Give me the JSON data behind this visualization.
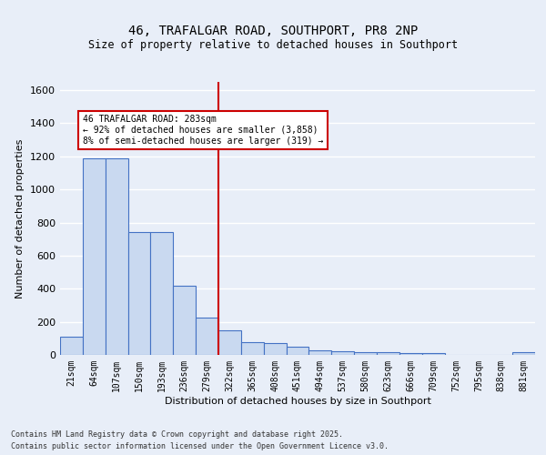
{
  "title": "46, TRAFALGAR ROAD, SOUTHPORT, PR8 2NP",
  "subtitle": "Size of property relative to detached houses in Southport",
  "xlabel": "Distribution of detached houses by size in Southport",
  "ylabel": "Number of detached properties",
  "categories": [
    "21sqm",
    "64sqm",
    "107sqm",
    "150sqm",
    "193sqm",
    "236sqm",
    "279sqm",
    "322sqm",
    "365sqm",
    "408sqm",
    "451sqm",
    "494sqm",
    "537sqm",
    "580sqm",
    "623sqm",
    "666sqm",
    "709sqm",
    "752sqm",
    "795sqm",
    "838sqm",
    "881sqm"
  ],
  "values": [
    110,
    1190,
    1190,
    740,
    740,
    420,
    225,
    150,
    75,
    70,
    50,
    30,
    20,
    15,
    15,
    13,
    13,
    0,
    0,
    0,
    18
  ],
  "bar_color": "#c9d9f0",
  "bar_edge_color": "#4472c4",
  "vline_x_index": 6.5,
  "vline_color": "#cc0000",
  "annotation_text": "46 TRAFALGAR ROAD: 283sqm\n← 92% of detached houses are smaller (3,858)\n8% of semi-detached houses are larger (319) →",
  "annotation_box_color": "#ffffff",
  "annotation_box_edge_color": "#cc0000",
  "background_color": "#e8eef8",
  "grid_color": "#ffffff",
  "footer_line1": "Contains HM Land Registry data © Crown copyright and database right 2025.",
  "footer_line2": "Contains public sector information licensed under the Open Government Licence v3.0.",
  "ylim": [
    0,
    1650
  ],
  "yticks": [
    0,
    200,
    400,
    600,
    800,
    1000,
    1200,
    1400,
    1600
  ]
}
